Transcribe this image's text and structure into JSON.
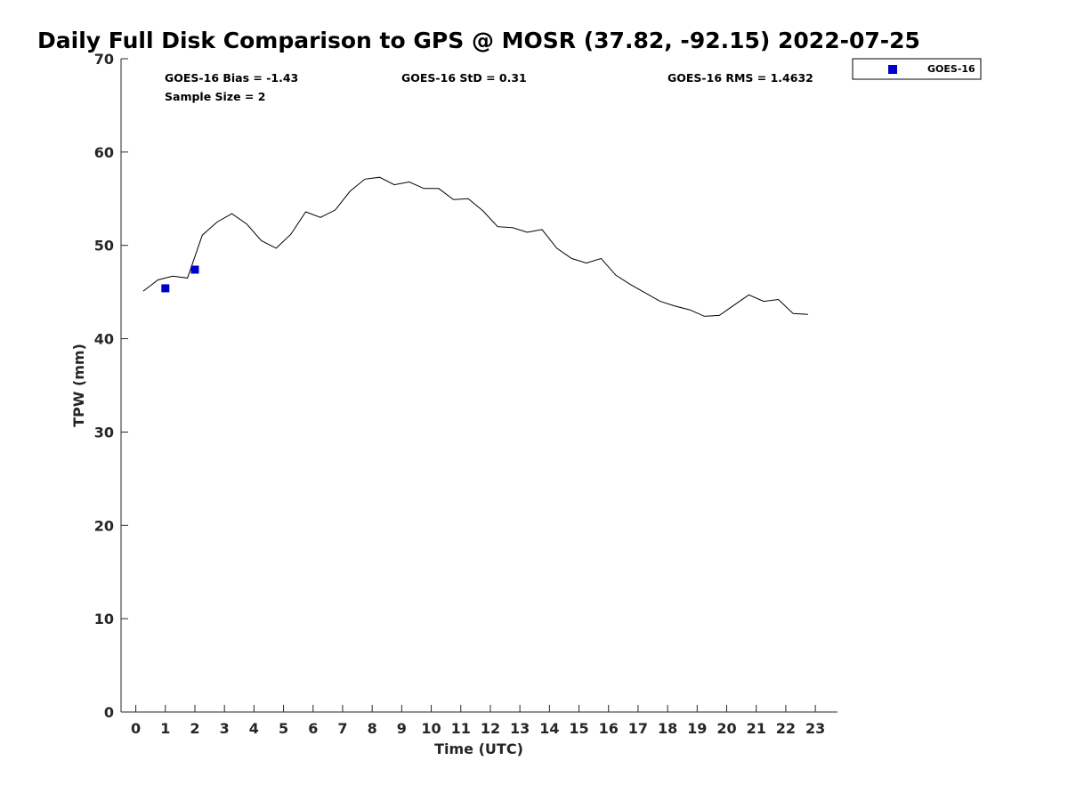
{
  "chart_data": {
    "type": "line",
    "title": "Daily Full Disk Comparison to GPS @ MOSR (37.82, -92.15) 2022-07-25",
    "xlabel": "Time (UTC)",
    "ylabel": "TPW (mm)",
    "xlim": [
      -0.5,
      23.75
    ],
    "ylim": [
      0,
      70
    ],
    "xticks": [
      0,
      1,
      2,
      3,
      4,
      5,
      6,
      7,
      8,
      9,
      10,
      11,
      12,
      13,
      14,
      15,
      16,
      17,
      18,
      19,
      20,
      21,
      22,
      23
    ],
    "yticks": [
      0,
      10,
      20,
      30,
      40,
      50,
      60,
      70
    ],
    "grid": false,
    "legend_position": "top-right, outside plot",
    "stats": {
      "bias": "GOES-16 Bias = -1.43",
      "std": "GOES-16 StD = 0.31",
      "rms": "GOES-16 RMS = 1.4632",
      "sample_size": "Sample Size = 2"
    },
    "gps_line": {
      "color": "#000000",
      "x": [
        0.25,
        0.75,
        1.25,
        1.75,
        2.25,
        2.75,
        3.25,
        3.75,
        4.25,
        4.75,
        5.25,
        5.75,
        6.25,
        6.75,
        7.25,
        7.75,
        8.25,
        8.75,
        9.25,
        9.75,
        10.25,
        10.75,
        11.25,
        11.75,
        12.25,
        12.75,
        13.25,
        13.75,
        14.25,
        14.75,
        15.25,
        15.75,
        16.25,
        16.75,
        17.25,
        17.75,
        18.25,
        18.75,
        19.25,
        19.75,
        20.25,
        20.75,
        21.25,
        21.75,
        22.25,
        22.75
      ],
      "y": [
        45.1,
        46.3,
        46.7,
        46.5,
        51.1,
        52.5,
        53.4,
        52.3,
        50.5,
        49.7,
        51.2,
        53.6,
        53.0,
        53.8,
        55.8,
        57.1,
        57.3,
        56.5,
        56.8,
        56.1,
        56.1,
        54.9,
        55.0,
        53.7,
        52.0,
        51.9,
        51.4,
        51.7,
        49.7,
        48.6,
        48.1,
        48.6,
        46.8,
        45.8,
        44.9,
        44.0,
        43.5,
        43.1,
        42.4,
        42.5,
        43.6,
        44.7,
        44.0,
        44.2,
        42.7,
        42.6
      ]
    },
    "series": [
      {
        "name": "GOES-16",
        "color": "#0000cc",
        "marker": "square",
        "x": [
          1.0,
          2.0
        ],
        "y": [
          45.4,
          47.4
        ]
      }
    ]
  }
}
